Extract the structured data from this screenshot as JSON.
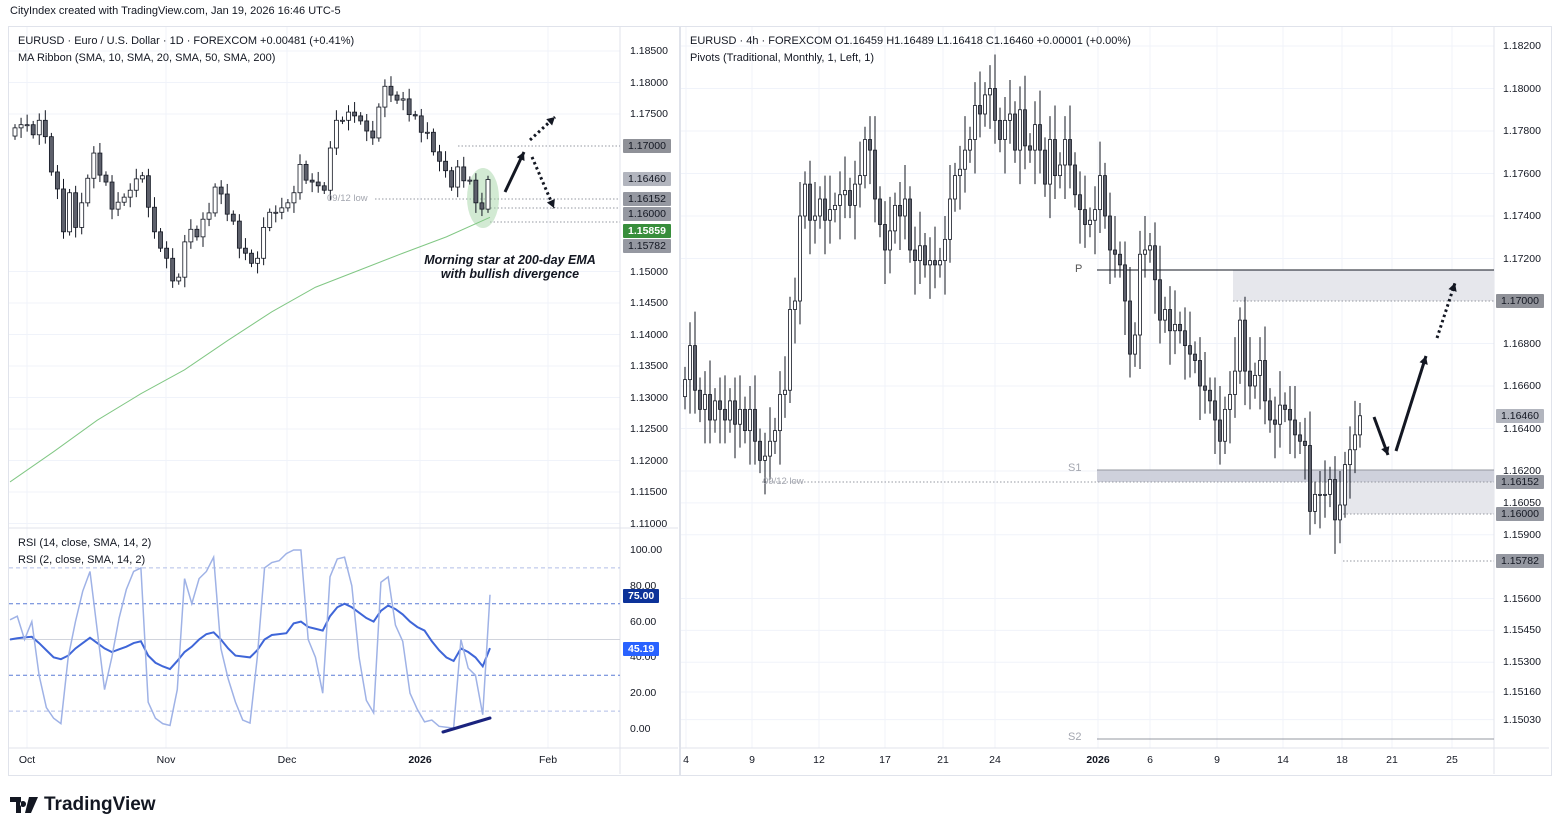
{
  "header": {
    "attribution": "CityIndex created with TradingView.com, Jan 19, 2026 16:46 UTC-5"
  },
  "left_chart": {
    "title": "EURUSD · Euro / U.S. Dollar · 1D · FOREXCOM  +0.00481 (+0.41%)",
    "indicator": "MA Ribbon (SMA, 10, SMA, 20, SMA, 50, SMA, 200)",
    "price_ticks": [
      "1.18500",
      "1.18000",
      "1.17500",
      "1.15000",
      "1.14500",
      "1.14000",
      "1.13500",
      "1.13000",
      "1.12500",
      "1.12000",
      "1.11500",
      "1.11000"
    ],
    "price_labels": [
      {
        "text": "1.17000",
        "bg": "#8f9198",
        "fg": "#131722"
      },
      {
        "text": "1.16460",
        "bg": "#b2b5be",
        "fg": "#131722"
      },
      {
        "text": "1.16152",
        "bg": "#9598a1",
        "fg": "#131722"
      },
      {
        "text": "1.16000",
        "bg": "#9598a1",
        "fg": "#131722"
      },
      {
        "text": "1.15859",
        "bg": "#388e3c",
        "fg": "#ffffff"
      },
      {
        "text": "1.15782",
        "bg": "#9598a1",
        "fg": "#131722"
      }
    ],
    "level_label": "09/12 low",
    "annotation": {
      "line1": "Morning star at 200-day EMA",
      "line2": "with bullish divergence"
    },
    "rsi": {
      "legend1": "RSI (14, close, SMA, 14, 2)",
      "legend2": "RSI (2, close, SMA, 14, 2)",
      "ticks": [
        "100.00",
        "80.00",
        "60.00",
        "40.00",
        "20.00",
        "0.00"
      ],
      "labels": [
        {
          "text": "75.00",
          "bg": "#0c3299",
          "fg": "#ffffff"
        },
        {
          "text": "45.19",
          "bg": "#2962ff",
          "fg": "#ffffff"
        }
      ]
    },
    "time_axis": [
      "Oct",
      "Nov",
      "Dec",
      "2026",
      "Feb"
    ]
  },
  "right_chart": {
    "title": "EURUSD · 4h · FOREXCOM  O1.16459  H1.16489  L1.16418  C1.16460  +0.00001 (+0.00%)",
    "indicator": "Pivots (Traditional, Monthly, 1, Left, 1)",
    "price_ticks": [
      "1.18200",
      "1.18000",
      "1.17800",
      "1.17600",
      "1.17400",
      "1.17200",
      "1.16800",
      "1.16600",
      "1.16400",
      "1.16200",
      "1.16050",
      "1.15900",
      "1.15600",
      "1.15450",
      "1.15300",
      "1.15160",
      "1.15030"
    ],
    "price_labels": [
      {
        "text": "1.17000",
        "bg": "#8f9198",
        "fg": "#131722"
      },
      {
        "text": "1.16460",
        "bg": "#b2b5be",
        "fg": "#131722"
      },
      {
        "text": "1.16152",
        "bg": "#9598a1",
        "fg": "#131722"
      },
      {
        "text": "1.16000",
        "bg": "#9598a1",
        "fg": "#131722"
      },
      {
        "text": "1.15782",
        "bg": "#9598a1",
        "fg": "#131722"
      }
    ],
    "pivots": {
      "p": "P",
      "s1": "S1",
      "s2": "S2"
    },
    "level_label": "09/12 low",
    "time_axis": [
      "4",
      "9",
      "12",
      "17",
      "21",
      "24",
      "2026",
      "6",
      "9",
      "14",
      "18",
      "21",
      "25"
    ]
  },
  "logo": "TradingView",
  "colors": {
    "bull": "#ffffff",
    "bear": "#5d606b",
    "ema": "#81c784",
    "rsi14": "#3f66d8",
    "rsi2": "#9fb2e6",
    "zone": "#e6e7ec",
    "zone_dark": "#cfd1dc"
  },
  "chart_data": [
    {
      "type": "candlestick",
      "title": "EURUSD · Euro / U.S. Dollar · 1D · FOREXCOM",
      "series_note": "approximate daily closes",
      "first_open": 1.1715,
      "close": [
        1.1728,
        1.1733,
        1.1733,
        1.1717,
        1.174,
        1.1714,
        1.1658,
        1.1631,
        1.1563,
        1.1625,
        1.157,
        1.1609,
        1.1648,
        1.1688,
        1.1653,
        1.1642,
        1.1599,
        1.161,
        1.1618,
        1.1629,
        1.1647,
        1.1652,
        1.1602,
        1.1563,
        1.1537,
        1.1521,
        1.1485,
        1.1491,
        1.1547,
        1.1567,
        1.1555,
        1.1583,
        1.1593,
        1.1634,
        1.1623,
        1.1591,
        1.158,
        1.1537,
        1.1529,
        1.1513,
        1.1521,
        1.157,
        1.1594,
        1.1594,
        1.1601,
        1.1609,
        1.1625,
        1.167,
        1.1645,
        1.1642,
        1.1636,
        1.1629,
        1.1696,
        1.174,
        1.174,
        1.1753,
        1.1747,
        1.1739,
        1.1723,
        1.1712,
        1.1761,
        1.1794,
        1.178,
        1.1772,
        1.1774,
        1.1749,
        1.1747,
        1.1721,
        1.1721,
        1.169,
        1.1675,
        1.166,
        1.1634,
        1.1666,
        1.1644,
        1.1645,
        1.1609,
        1.1599,
        1.1646
      ],
      "ema200": [
        1.1166,
        1.1214,
        1.1264,
        1.1306,
        1.1344,
        1.1391,
        1.1436,
        1.1475,
        1.1502,
        1.1529,
        1.1555,
        1.1586
      ],
      "ylim": [
        1.1085,
        1.1875
      ],
      "x_ticks": [
        "Oct",
        "Nov",
        "Dec",
        "2026",
        "Feb"
      ]
    },
    {
      "type": "line",
      "title": "RSI",
      "series": [
        {
          "name": "RSI (14, close, SMA, 14, 2)",
          "values": [
            50,
            50.7,
            51.2,
            51.5,
            48,
            44,
            40,
            39,
            41,
            45,
            48,
            51,
            48,
            45,
            43,
            44.5,
            46,
            48,
            49,
            41,
            37,
            35,
            33.5,
            38,
            43,
            46,
            50,
            53,
            54,
            50,
            45,
            41,
            40.5,
            40,
            44,
            50,
            52.5,
            53,
            53.5,
            59,
            60,
            57,
            56,
            55,
            63,
            68,
            70,
            68,
            65,
            62,
            60,
            66,
            69,
            67,
            64,
            60,
            57,
            55,
            49,
            44,
            40,
            38,
            45,
            43,
            40,
            35,
            45.19
          ]
        },
        {
          "name": "RSI (2, close, SMA, 14, 2)",
          "values": [
            61,
            63,
            50,
            60,
            30,
            12,
            6,
            3,
            40,
            60,
            77,
            88,
            55,
            22,
            40,
            62,
            78,
            88,
            90,
            15,
            6,
            3,
            2,
            22,
            84,
            70,
            84,
            88,
            96,
            45,
            28,
            15,
            5,
            3.3,
            40,
            90,
            93,
            94,
            98,
            100,
            100,
            50,
            40,
            20,
            85,
            95,
            96,
            80,
            40,
            16,
            9,
            82,
            85,
            58,
            49,
            20,
            11,
            4,
            5,
            1.5,
            1,
            0.5,
            50,
            34,
            30,
            8,
            75
          ]
        }
      ],
      "levels": [
        90,
        70,
        50,
        30,
        10
      ],
      "ylim": [
        -10,
        105
      ]
    },
    {
      "type": "candlestick",
      "title": "EURUSD · 4h · FOREXCOM",
      "series_note": "approximate 4h closes",
      "first_open": 1.1655,
      "close": [
        1.1663,
        1.1679,
        1.1658,
        1.1649,
        1.1656,
        1.1644,
        1.1653,
        1.1649,
        1.1644,
        1.1653,
        1.1642,
        1.1649,
        1.1639,
        1.1649,
        1.1634,
        1.1625,
        1.1627,
        1.1634,
        1.1639,
        1.1656,
        1.1658,
        1.1696,
        1.17,
        1.174,
        1.1755,
        1.1738,
        1.174,
        1.1748,
        1.1738,
        1.1743,
        1.1745,
        1.175,
        1.1752,
        1.1745,
        1.1755,
        1.1759,
        1.1776,
        1.1771,
        1.1748,
        1.1736,
        1.1724,
        1.1733,
        1.1745,
        1.174,
        1.1748,
        1.1724,
        1.1719,
        1.1726,
        1.1717,
        1.1719,
        1.1717,
        1.1719,
        1.1729,
        1.1748,
        1.1759,
        1.1762,
        1.1771,
        1.1776,
        1.1792,
        1.1788,
        1.1797,
        1.18,
        1.1785,
        1.1776,
        1.1785,
        1.1788,
        1.1771,
        1.179,
        1.1773,
        1.1771,
        1.1783,
        1.1771,
        1.1755,
        1.1776,
        1.1759,
        1.1764,
        1.1776,
        1.1764,
        1.175,
        1.1743,
        1.1736,
        1.1738,
        1.1743,
        1.1759,
        1.174,
        1.1724,
        1.1722,
        1.1717,
        1.17,
        1.1675,
        1.1684,
        1.1722,
        1.1724,
        1.1726,
        1.171,
        1.1691,
        1.1696,
        1.1686,
        1.1689,
        1.1686,
        1.1679,
        1.1675,
        1.1672,
        1.166,
        1.1658,
        1.1653,
        1.1644,
        1.1634,
        1.1649,
        1.1656,
        1.1667,
        1.1691,
        1.1667,
        1.166,
        1.1665,
        1.1672,
        1.1653,
        1.1644,
        1.1642,
        1.1651,
        1.1649,
        1.1644,
        1.1637,
        1.1634,
        1.1632,
        1.1601,
        1.1609,
        1.1609,
        1.1609,
        1.1616,
        1.1597,
        1.1604,
        1.1623,
        1.163,
        1.1637,
        1.1646
      ],
      "last": {
        "open": 1.16459,
        "high": 1.16489,
        "low": 1.16418,
        "close": 1.1646
      },
      "pivot_levels": {
        "P": 1.1714,
        "S1": 1.1619,
        "S2": 1.1497
      },
      "ylim": [
        1.1495,
        1.1835
      ],
      "x_ticks": [
        "4",
        "9",
        "12",
        "17",
        "21",
        "24",
        "2026",
        "6",
        "9",
        "14",
        "18",
        "21",
        "25"
      ]
    }
  ]
}
